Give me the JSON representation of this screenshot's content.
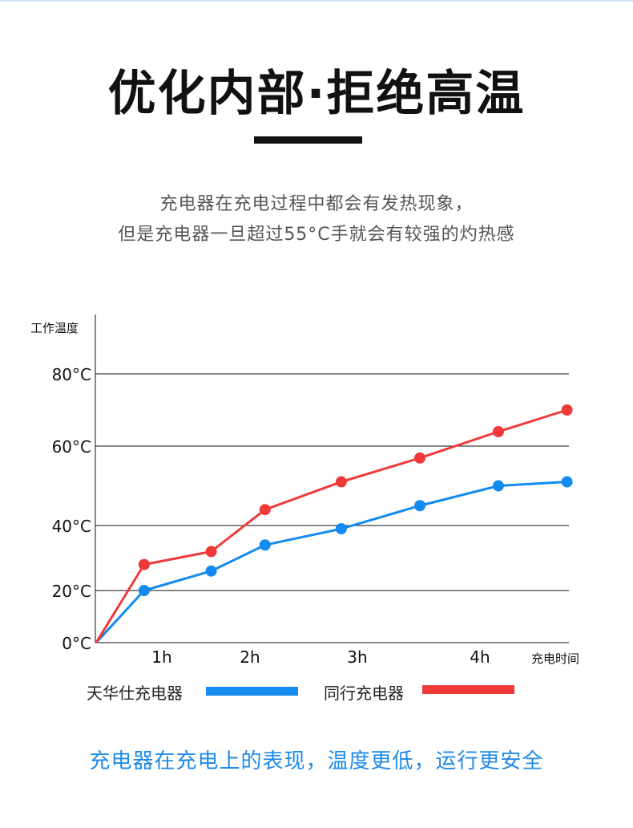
{
  "title": "优化内部·拒绝高温",
  "subtitle_lines": [
    "充电器在充电过程中都会有发热现象，",
    "但是充电器一旦超过55°C手就会有较强的灼热感"
  ],
  "footer": "充电器在充电上的表现，温度更低，运行更安全",
  "colors": {
    "blue": "#138bef",
    "red": "#f03a3a",
    "accent_text": "#1f8ae6"
  },
  "chart_data": {
    "type": "line",
    "ylabel": "工作温度",
    "xlabel": "充电时间",
    "y_ticks": [
      {
        "value": 0,
        "label": "0°C"
      },
      {
        "value": 20,
        "label": "20°C"
      },
      {
        "value": 40,
        "label": "40°C"
      },
      {
        "value": 60,
        "label": "60°C"
      },
      {
        "value": 80,
        "label": "80°C"
      }
    ],
    "x_ticks": [
      {
        "value": 1,
        "label": "1h"
      },
      {
        "value": 2,
        "label": "2h"
      },
      {
        "value": 3,
        "label": "3h"
      },
      {
        "value": 4,
        "label": "4h"
      }
    ],
    "grid": true,
    "legend_position": "bottom",
    "x": [
      0,
      0.73,
      1.56,
      2.14,
      2.85,
      3.51,
      4.15,
      4.71
    ],
    "series": [
      {
        "name": "天华仕充电器",
        "color": "#138bef",
        "values": [
          0,
          20,
          26,
          34,
          39,
          45,
          50,
          51
        ]
      },
      {
        "name": "同行充电器",
        "color": "#f03a3a",
        "values": [
          0,
          28,
          32,
          44,
          51,
          57,
          64,
          70
        ]
      }
    ]
  }
}
